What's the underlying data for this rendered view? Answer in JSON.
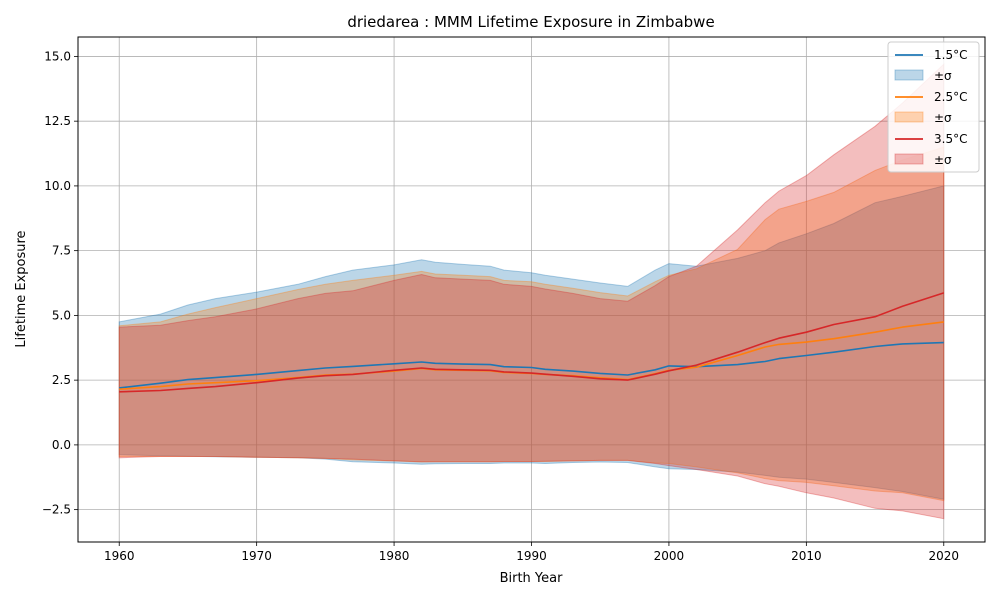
{
  "chart_data": {
    "type": "line",
    "title": "driedarea : MMM Lifetime Exposure in Zimbabwe",
    "xlabel": "Birth Year",
    "ylabel": "Lifetime Exposure",
    "xlim": [
      1957,
      2023
    ],
    "ylim": [
      -3.75,
      15.75
    ],
    "grid": true,
    "legend_position": "top-right",
    "x_ticks": [
      1960,
      1970,
      1980,
      1990,
      2000,
      2010,
      2020
    ],
    "x_tick_labels": [
      "1960",
      "1970",
      "1980",
      "1990",
      "2000",
      "2010",
      "2020"
    ],
    "y_ticks": [
      -2.5,
      0,
      2.5,
      5,
      7.5,
      10,
      12.5,
      15
    ],
    "y_tick_labels": [
      "−2.5",
      "0.0",
      "2.5",
      "5.0",
      "7.5",
      "10.0",
      "12.5",
      "15.0"
    ],
    "x": [
      1960,
      1963,
      1965,
      1967,
      1970,
      1973,
      1975,
      1977,
      1980,
      1982,
      1983,
      1985,
      1987,
      1988,
      1990,
      1991,
      1993,
      1995,
      1997,
      1999,
      2000,
      2002,
      2005,
      2007,
      2008,
      2010,
      2012,
      2015,
      2017,
      2020
    ],
    "series": [
      {
        "name": "1.5°C",
        "band_label": "±σ",
        "color": "#1f77b4",
        "band_color": "#aecde6",
        "mean": [
          2.2,
          2.38,
          2.52,
          2.6,
          2.72,
          2.87,
          2.97,
          3.03,
          3.13,
          3.2,
          3.15,
          3.12,
          3.1,
          3.02,
          2.99,
          2.92,
          2.85,
          2.76,
          2.7,
          2.9,
          3.05,
          3.02,
          3.1,
          3.22,
          3.33,
          3.45,
          3.58,
          3.8,
          3.9,
          3.95
        ],
        "upper": [
          4.75,
          5.05,
          5.4,
          5.65,
          5.9,
          6.2,
          6.5,
          6.75,
          6.95,
          7.15,
          7.05,
          6.97,
          6.9,
          6.75,
          6.65,
          6.55,
          6.4,
          6.25,
          6.12,
          6.75,
          7.0,
          6.9,
          7.2,
          7.5,
          7.8,
          8.15,
          8.55,
          9.35,
          9.6,
          10.0
        ],
        "lower": [
          -0.38,
          -0.42,
          -0.44,
          -0.46,
          -0.48,
          -0.5,
          -0.55,
          -0.65,
          -0.7,
          -0.75,
          -0.73,
          -0.72,
          -0.72,
          -0.7,
          -0.7,
          -0.72,
          -0.68,
          -0.66,
          -0.68,
          -0.85,
          -0.92,
          -0.95,
          -1.05,
          -1.18,
          -1.25,
          -1.32,
          -1.45,
          -1.65,
          -1.8,
          -2.1
        ]
      },
      {
        "name": "2.5°C",
        "band_label": "±σ",
        "color": "#ff7f0e",
        "band_color": "#ffc99a",
        "mean": [
          2.15,
          2.25,
          2.35,
          2.4,
          2.48,
          2.6,
          2.7,
          2.73,
          2.85,
          2.95,
          2.9,
          2.88,
          2.86,
          2.8,
          2.76,
          2.72,
          2.67,
          2.59,
          2.52,
          2.75,
          2.88,
          3.0,
          3.45,
          3.78,
          3.88,
          3.97,
          4.1,
          4.35,
          4.55,
          4.75
        ],
        "upper": [
          4.6,
          4.75,
          5.05,
          5.3,
          5.65,
          6.0,
          6.2,
          6.35,
          6.55,
          6.7,
          6.6,
          6.55,
          6.5,
          6.35,
          6.3,
          6.2,
          6.05,
          5.88,
          5.75,
          6.3,
          6.55,
          6.8,
          7.55,
          8.7,
          9.1,
          9.4,
          9.75,
          10.6,
          11.0,
          11.5
        ],
        "lower": [
          -0.45,
          -0.45,
          -0.45,
          -0.45,
          -0.48,
          -0.5,
          -0.52,
          -0.58,
          -0.62,
          -0.66,
          -0.65,
          -0.65,
          -0.65,
          -0.64,
          -0.64,
          -0.64,
          -0.62,
          -0.6,
          -0.6,
          -0.7,
          -0.72,
          -0.85,
          -1.08,
          -1.3,
          -1.38,
          -1.45,
          -1.58,
          -1.78,
          -1.85,
          -2.15
        ]
      },
      {
        "name": "3.5°C",
        "band_label": "±σ",
        "color": "#d62728",
        "band_color": "#eeaeb0",
        "mean": [
          2.05,
          2.1,
          2.18,
          2.25,
          2.4,
          2.58,
          2.67,
          2.72,
          2.88,
          2.97,
          2.92,
          2.9,
          2.88,
          2.82,
          2.77,
          2.73,
          2.65,
          2.55,
          2.5,
          2.73,
          2.86,
          3.08,
          3.58,
          3.95,
          4.12,
          4.35,
          4.65,
          4.95,
          5.35,
          5.87
        ],
        "upper": [
          4.55,
          4.62,
          4.8,
          4.95,
          5.25,
          5.65,
          5.85,
          5.95,
          6.35,
          6.58,
          6.45,
          6.4,
          6.35,
          6.2,
          6.12,
          6.02,
          5.85,
          5.65,
          5.55,
          6.15,
          6.5,
          6.9,
          8.3,
          9.35,
          9.8,
          10.4,
          11.2,
          12.3,
          13.2,
          14.7
        ],
        "lower": [
          -0.5,
          -0.45,
          -0.45,
          -0.45,
          -0.48,
          -0.5,
          -0.52,
          -0.55,
          -0.62,
          -0.65,
          -0.65,
          -0.65,
          -0.65,
          -0.64,
          -0.64,
          -0.63,
          -0.62,
          -0.6,
          -0.6,
          -0.72,
          -0.8,
          -0.95,
          -1.2,
          -1.5,
          -1.6,
          -1.85,
          -2.05,
          -2.45,
          -2.55,
          -2.85
        ]
      }
    ]
  }
}
